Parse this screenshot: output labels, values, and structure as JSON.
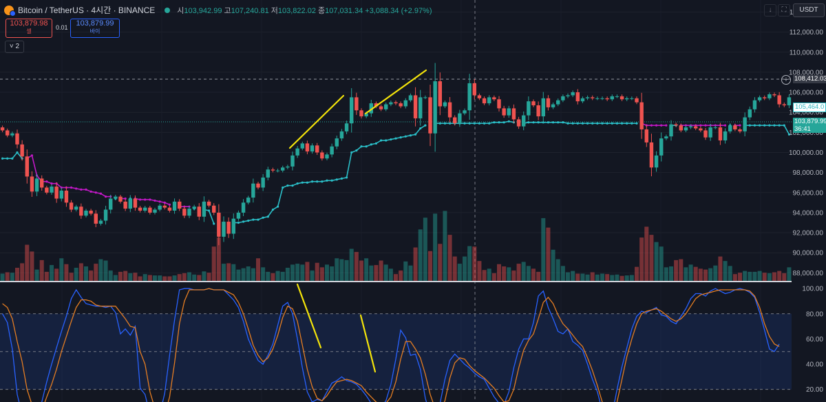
{
  "header": {
    "symbol": "Bitcoin / TetherUS · 4시간 · BINANCE",
    "o_label": "시",
    "o_value": "103,942.99",
    "h_label": "고",
    "h_value": "107,240.81",
    "l_label": "저",
    "l_value": "103,822.02",
    "c_label": "종",
    "c_value": "107,031.34",
    "change": "+3,088.34 (+2.97%)"
  },
  "trade": {
    "sell_price": "103,879.98",
    "sell_label": "셀",
    "spread": "0.01",
    "buy_price": "103,879.99",
    "buy_label": "바이",
    "indicator_count": "2"
  },
  "currency": "USDT",
  "price_tags": {
    "crosshair": "108,412.03",
    "supertrend": "105,464.0",
    "last_price": "103,879.99",
    "countdown": "36:41"
  },
  "colors": {
    "up": "#26a69a",
    "down": "#ef5350",
    "supertrend_bear": "#c218c7",
    "supertrend_bull": "#2bc0c9",
    "stoch_k": "#2962ff",
    "stoch_d": "#e67e22",
    "annotation": "#f5e50a",
    "background": "#131722"
  },
  "chart_data": [
    {
      "type": "candlestick",
      "yticks": [
        "114,000.00",
        "112,000.00",
        "110,000.00",
        "108,000.00",
        "106,000.00",
        "104,000.00",
        "102,000.00",
        "100,000.00",
        "98,000.00",
        "96,000.00",
        "94,000.00",
        "92,000.00",
        "90,000.00",
        "88,000.00"
      ],
      "ylim": [
        87200,
        115200
      ],
      "x_count": 161,
      "close": [
        102200,
        101700,
        101900,
        100800,
        99600,
        97600,
        96100,
        97400,
        96500,
        96000,
        96600,
        95400,
        96200,
        95000,
        94300,
        94600,
        93700,
        94200,
        93900,
        92900,
        93200,
        94300,
        95400,
        95600,
        95100,
        94400,
        95400,
        94500,
        94200,
        94500,
        94000,
        94300,
        94700,
        94500,
        94200,
        95100,
        94400,
        93700,
        94400,
        94600,
        93600,
        95100,
        94700,
        94000,
        91600,
        93100,
        91900,
        93400,
        94000,
        95000,
        95500,
        96900,
        96500,
        97500,
        98300,
        98200,
        98200,
        98500,
        98600,
        99700,
        100400,
        100900,
        100100,
        100700,
        100000,
        99400,
        99800,
        100600,
        101400,
        102100,
        102900,
        105500,
        104200,
        103600,
        103900,
        104900,
        104600,
        104300,
        104800,
        105000,
        104900,
        104600,
        105200,
        105700,
        103400,
        105500,
        105500,
        101900,
        107100,
        104600,
        105000,
        103500,
        102900,
        103900,
        104200,
        106900,
        105700,
        105400,
        104900,
        105500,
        105300,
        104400,
        103700,
        104400,
        103300,
        102600,
        103700,
        105100,
        104700,
        103600,
        105400,
        104500,
        104800,
        105200,
        105600,
        105700,
        106000,
        105100,
        105400,
        105500,
        105400,
        105400,
        105400,
        105300,
        105600,
        105600,
        105300,
        105400,
        105400,
        105000,
        102300,
        101000,
        98500,
        99700,
        101400,
        101600,
        102800,
        102700,
        102200,
        102500,
        102600,
        102400,
        102200,
        101500,
        102500,
        102500,
        101200,
        102100,
        102700,
        102300,
        102100,
        103500,
        104300,
        105200,
        105500,
        105400,
        105800,
        105700,
        104800,
        104700,
        105500
      ],
      "supertrend": [
        99400,
        99400,
        99400,
        100000,
        99400,
        99400,
        99700,
        97700,
        97100,
        97100,
        96900,
        96900,
        96500,
        96500,
        96500,
        96400,
        96300,
        96300,
        96100,
        96000,
        95900,
        95600,
        95600,
        95400,
        95400,
        95400,
        95400,
        95400,
        95300,
        95300,
        95300,
        95200,
        95100,
        95000,
        94800,
        94700,
        94600,
        94600,
        94600,
        94400,
        94300,
        94300,
        94200,
        92900,
        92900,
        92900,
        92700,
        93000,
        93000,
        93100,
        93200,
        93300,
        93300,
        93500,
        93600,
        94300,
        94600,
        96500,
        96700,
        96700,
        96900,
        97000,
        97000,
        97100,
        97100,
        97100,
        97200,
        97200,
        97300,
        97400,
        97500,
        100000,
        100200,
        100600,
        100600,
        100800,
        100900,
        101200,
        101200,
        101300,
        101400,
        101500,
        101600,
        101700,
        101800,
        102400,
        102700,
        102700,
        102900,
        102900,
        102900,
        102900,
        102900,
        102900,
        102900,
        102900,
        102900,
        102900,
        102900,
        102900,
        103000,
        103000,
        103000,
        103100,
        103000,
        103000,
        102900,
        103000,
        103000,
        103000,
        103000,
        103000,
        103000,
        103000,
        103000,
        102900,
        102900,
        102900,
        102900,
        102900,
        102900,
        102900,
        102900,
        102900,
        102900,
        102900,
        102900,
        102900,
        102900,
        102900,
        102900,
        102700,
        102700,
        102700,
        102700,
        102700,
        102700,
        102700,
        102700,
        102700,
        102700,
        102700,
        102700,
        102700,
        102700,
        102700,
        102700,
        102700,
        102700,
        102700,
        102700,
        102700,
        102700,
        102700,
        102700,
        102700,
        102700,
        102700,
        102700,
        102700,
        101800
      ],
      "volume_ylim": [
        0,
        18
      ],
      "volume": [
        1.6,
        1.9,
        1.8,
        2.9,
        3.9,
        8.0,
        6.5,
        2.5,
        4.6,
        2.0,
        3.5,
        2.7,
        5.0,
        3.7,
        1.8,
        2.9,
        3.9,
        3.2,
        2.3,
        3.8,
        4.8,
        4.5,
        2.3,
        1.3,
        2.0,
        2.2,
        1.7,
        1.8,
        1.0,
        1.5,
        1.3,
        1.2,
        1.2,
        1.0,
        1.0,
        1.2,
        1.5,
        1.7,
        1.9,
        1.4,
        1.3,
        2.1,
        1.8,
        7.6,
        9.6,
        3.8,
        3.9,
        3.7,
        2.5,
        2.8,
        3.2,
        2.8,
        5.0,
        3.0,
        2.0,
        1.7,
        2.2,
        2.0,
        2.9,
        3.6,
        3.8,
        3.6,
        4.2,
        2.3,
        4.0,
        3.0,
        3.6,
        3.2,
        5.0,
        4.8,
        4.6,
        7.1,
        6.4,
        4.5,
        5.0,
        3.4,
        3.5,
        4.5,
        3.6,
        2.7,
        1.5,
        2.3,
        4.3,
        3.4,
        7.4,
        11.4,
        14.0,
        6.6,
        14.9,
        8.2,
        15.5,
        10.2,
        5.4,
        3.8,
        5.4,
        7.7,
        7.6,
        4.4,
        2.4,
        2.7,
        1.7,
        3.7,
        3.2,
        3.0,
        2.3,
        3.8,
        4.2,
        3.3,
        2.7,
        2.0,
        13.9,
        11.8,
        6.9,
        4.8,
        3.3,
        1.9,
        2.2,
        1.6,
        1.6,
        1.4,
        1.9,
        1.4,
        1.6,
        1.5,
        1.3,
        1.4,
        1.1,
        1.2,
        1.3,
        3.1,
        9.6,
        12.0,
        10.2,
        8.6,
        7.6,
        3.0,
        3.2,
        4.6,
        4.8,
        3.0,
        3.6,
        3.1,
        2.7,
        2.5,
        2.8,
        3.4,
        5.4,
        4.4,
        3.3,
        1.5,
        1.8,
        2.2,
        2.0,
        2.0,
        2.2,
        1.8,
        1.7,
        1.9,
        2.2,
        1.7,
        3.0
      ]
    },
    {
      "type": "line",
      "title": "",
      "yticks": [
        "100.00",
        "80.00",
        "60.00",
        "40.00",
        "20.00"
      ],
      "ylim": [
        10,
        105
      ],
      "bands": [
        20,
        50,
        80
      ],
      "series": [
        {
          "values": [
            80,
            73,
            52,
            16,
            0,
            0,
            0,
            0,
            10,
            26,
            40,
            53,
            66,
            78,
            92,
            99,
            93,
            88,
            87,
            86,
            86,
            85,
            86,
            81,
            64,
            68,
            63,
            70,
            21,
            16,
            0,
            0,
            0,
            17,
            47,
            75,
            99,
            100,
            100,
            99,
            99,
            99,
            100,
            99,
            99,
            99,
            95,
            91,
            85,
            74,
            60,
            51,
            43,
            40,
            47,
            56,
            71,
            86,
            89,
            80,
            60,
            37,
            18,
            10,
            12,
            11,
            18,
            25,
            27,
            30,
            27,
            26,
            24,
            20,
            15,
            9,
            8,
            6,
            11,
            24,
            44,
            67,
            61,
            47,
            48,
            36,
            13,
            0,
            0,
            9,
            28,
            43,
            48,
            44,
            40,
            37,
            33,
            30,
            28,
            21,
            14,
            9,
            8,
            18,
            37,
            52,
            60,
            60,
            73,
            94,
            98,
            85,
            76,
            66,
            64,
            68,
            58,
            55,
            51,
            40,
            28,
            18,
            3,
            0,
            0,
            20,
            38,
            53,
            68,
            78,
            82,
            81,
            83,
            85,
            79,
            78,
            74,
            72,
            78,
            84,
            92,
            96,
            96,
            94,
            98,
            100,
            98,
            96,
            97,
            99,
            100,
            99,
            97,
            93,
            81,
            67,
            52,
            50,
            56
          ]
        },
        {
          "values": [
            88,
            85,
            76,
            58,
            42,
            20,
            8,
            4,
            3,
            14,
            24,
            36,
            50,
            62,
            74,
            85,
            91,
            91,
            90,
            87,
            86,
            86,
            86,
            86,
            81,
            76,
            70,
            69,
            50,
            40,
            18,
            5,
            0,
            0,
            14,
            41,
            72,
            90,
            99,
            99,
            99,
            99,
            100,
            99,
            99,
            99,
            97,
            95,
            89,
            80,
            68,
            55,
            47,
            42,
            45,
            52,
            63,
            77,
            86,
            84,
            74,
            55,
            36,
            22,
            13,
            11,
            15,
            21,
            26,
            27,
            28,
            27,
            25,
            23,
            18,
            14,
            10,
            8,
            9,
            14,
            26,
            44,
            58,
            58,
            52,
            45,
            32,
            16,
            5,
            3,
            11,
            29,
            41,
            45,
            44,
            39,
            35,
            32,
            29,
            25,
            21,
            15,
            10,
            11,
            20,
            37,
            51,
            59,
            64,
            76,
            89,
            93,
            88,
            79,
            72,
            68,
            63,
            58,
            54,
            45,
            35,
            23,
            10,
            3,
            0,
            10,
            28,
            46,
            60,
            72,
            80,
            82,
            83,
            84,
            82,
            79,
            76,
            74,
            76,
            80,
            86,
            92,
            95,
            96,
            97,
            98,
            99,
            99,
            99,
            99,
            99,
            99,
            98,
            94,
            85,
            72,
            62,
            56,
            54
          ]
        }
      ]
    }
  ]
}
